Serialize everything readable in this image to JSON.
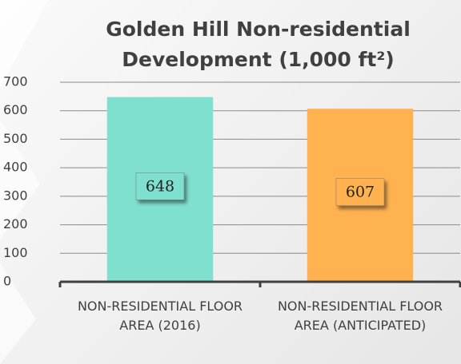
{
  "chart_data": {
    "type": "bar",
    "title": "Golden Hill Non-residential Development (1,000 ft²)",
    "categories": [
      "NON-RESIDENTIAL FLOOR AREA (2016)",
      "NON-RESIDENTIAL FLOOR AREA (ANTICIPATED)"
    ],
    "values": [
      648,
      607
    ],
    "colors": [
      "#80e0d0",
      "#ffb24f"
    ],
    "ylim": [
      0,
      700
    ],
    "yticks": [
      0,
      100,
      200,
      300,
      400,
      500,
      600,
      700
    ],
    "grid": true
  }
}
